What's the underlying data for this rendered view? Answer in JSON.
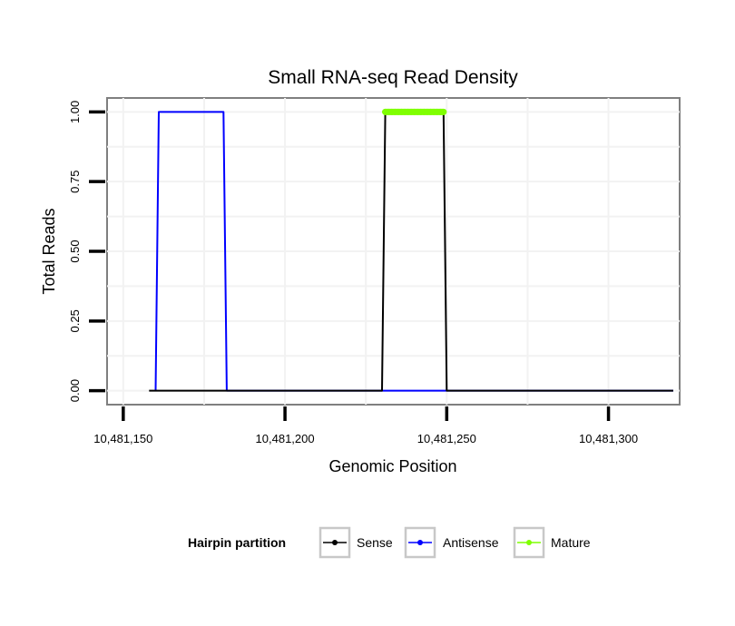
{
  "chart_data": {
    "type": "line",
    "title": "Small RNA-seq Read Density",
    "xlabel": "Genomic Position",
    "ylabel": "Total Reads",
    "xlim": [
      10481145,
      10481322
    ],
    "ylim": [
      -0.05,
      1.05
    ],
    "x_ticks": [
      10481150,
      10481200,
      10481250,
      10481300
    ],
    "x_tick_labels": [
      "10,481,150",
      "10,481,200",
      "10,481,250",
      "10,481,300"
    ],
    "y_ticks": [
      0,
      0.25,
      0.5,
      0.75,
      1.0
    ],
    "y_tick_labels": [
      "0.00",
      "0.25",
      "0.50",
      "0.75",
      "1.00"
    ],
    "grid": true,
    "legend": {
      "title": "Hairpin partition",
      "position": "bottom",
      "entries": [
        "Sense",
        "Antisense",
        "Mature"
      ]
    },
    "series": [
      {
        "name": "Antisense",
        "color": "#0000ff",
        "x": [
          10481160,
          10481161,
          10481181,
          10481182,
          10481320
        ],
        "y": [
          0,
          1,
          1,
          0,
          0
        ]
      },
      {
        "name": "Sense",
        "color": "#000000",
        "x": [
          10481158,
          10481230,
          10481231,
          10481249,
          10481250,
          10481320
        ],
        "y": [
          0,
          0,
          1,
          1,
          0,
          0
        ]
      },
      {
        "name": "Mature",
        "color": "#7fff00",
        "x": [
          10481231,
          10481249
        ],
        "y": [
          1,
          1
        ]
      }
    ]
  }
}
